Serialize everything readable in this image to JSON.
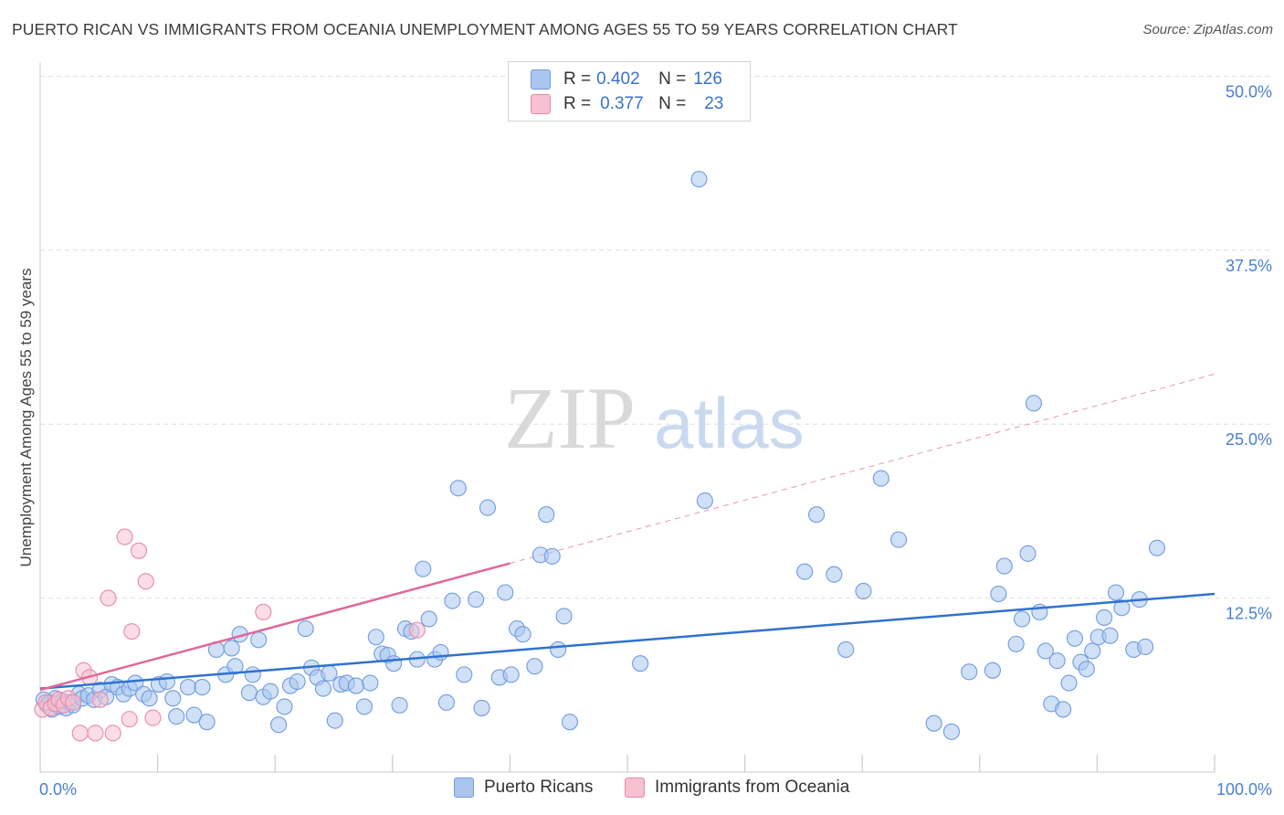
{
  "title": "PUERTO RICAN VS IMMIGRANTS FROM OCEANIA UNEMPLOYMENT AMONG AGES 55 TO 59 YEARS CORRELATION CHART",
  "source": "Source: ZipAtlas.com",
  "watermark": {
    "zip": "ZIP",
    "atlas": "atlas"
  },
  "colors": {
    "blue_fill": "#aac6ef",
    "blue_stroke": "#6f9be0",
    "blue_line": "#2f72d0",
    "pink_fill": "#f6c1d1",
    "pink_stroke": "#e889a8",
    "pink_line": "#e0689a",
    "grid": "#dddddd",
    "tick_text": "#4a7fd1"
  },
  "stats_legend": [
    {
      "r_label": "R = ",
      "r_value": "0.402",
      "n_label": "N = ",
      "n_value": "126"
    },
    {
      "r_label": "R = ",
      "r_value": "0.377",
      "n_label": "N = ",
      "n_value": "23"
    }
  ],
  "chart_data": {
    "type": "scatter",
    "title": "PUERTO RICAN VS IMMIGRANTS FROM OCEANIA UNEMPLOYMENT AMONG AGES 55 TO 59 YEARS CORRELATION CHART",
    "xlabel": "",
    "ylabel": "Unemployment Among Ages 55 to 59 years",
    "xlim": [
      0,
      100
    ],
    "ylim": [
      0,
      52.5
    ],
    "x_tick_labels": [
      "0.0%",
      "100.0%"
    ],
    "y_ticks": [
      12.5,
      25.0,
      37.5,
      50.0
    ],
    "y_tick_labels": [
      "12.5%",
      "25.0%",
      "37.5%",
      "50.0%"
    ],
    "series": [
      {
        "name": "Puerto Ricans",
        "r": 0.402,
        "n": 126,
        "trend": {
          "x": [
            0,
            100
          ],
          "y": [
            6.0,
            12.8
          ]
        },
        "points": [
          [
            0.3,
            5.2
          ],
          [
            0.6,
            4.8
          ],
          [
            0.8,
            5.0
          ],
          [
            1.0,
            4.5
          ],
          [
            1.3,
            5.3
          ],
          [
            1.6,
            4.7
          ],
          [
            1.9,
            5.1
          ],
          [
            2.2,
            4.6
          ],
          [
            2.5,
            5.0
          ],
          [
            2.8,
            4.8
          ],
          [
            3.3,
            5.6
          ],
          [
            3.6,
            5.3
          ],
          [
            4.1,
            5.5
          ],
          [
            4.6,
            5.2
          ],
          [
            5.1,
            5.9
          ],
          [
            5.6,
            5.4
          ],
          [
            6.1,
            6.3
          ],
          [
            6.6,
            6.1
          ],
          [
            7.1,
            5.6
          ],
          [
            7.6,
            6.0
          ],
          [
            8.1,
            6.4
          ],
          [
            8.8,
            5.6
          ],
          [
            9.3,
            5.3
          ],
          [
            10.1,
            6.3
          ],
          [
            10.8,
            6.5
          ],
          [
            11.3,
            5.3
          ],
          [
            11.6,
            4.0
          ],
          [
            12.6,
            6.1
          ],
          [
            13.1,
            4.1
          ],
          [
            13.8,
            6.1
          ],
          [
            14.2,
            3.6
          ],
          [
            15.0,
            8.8
          ],
          [
            15.8,
            7.0
          ],
          [
            16.3,
            8.9
          ],
          [
            16.6,
            7.6
          ],
          [
            17.0,
            9.9
          ],
          [
            17.8,
            5.7
          ],
          [
            18.1,
            7.0
          ],
          [
            18.6,
            9.5
          ],
          [
            19.0,
            5.4
          ],
          [
            19.6,
            5.8
          ],
          [
            20.3,
            3.4
          ],
          [
            20.8,
            4.7
          ],
          [
            21.3,
            6.2
          ],
          [
            21.9,
            6.5
          ],
          [
            22.6,
            10.3
          ],
          [
            23.1,
            7.5
          ],
          [
            23.6,
            6.8
          ],
          [
            24.1,
            6.0
          ],
          [
            24.6,
            7.1
          ],
          [
            25.1,
            3.7
          ],
          [
            25.6,
            6.3
          ],
          [
            26.1,
            6.4
          ],
          [
            26.9,
            6.2
          ],
          [
            27.6,
            4.7
          ],
          [
            28.1,
            6.4
          ],
          [
            28.6,
            9.7
          ],
          [
            29.1,
            8.5
          ],
          [
            29.6,
            8.4
          ],
          [
            30.1,
            7.8
          ],
          [
            30.6,
            4.8
          ],
          [
            31.1,
            10.3
          ],
          [
            31.6,
            10.1
          ],
          [
            32.1,
            8.1
          ],
          [
            32.6,
            14.6
          ],
          [
            33.1,
            11.0
          ],
          [
            33.6,
            8.1
          ],
          [
            34.1,
            8.6
          ],
          [
            34.6,
            5.0
          ],
          [
            35.1,
            12.3
          ],
          [
            35.6,
            20.4
          ],
          [
            36.1,
            7.0
          ],
          [
            37.1,
            12.4
          ],
          [
            37.6,
            4.6
          ],
          [
            38.1,
            19.0
          ],
          [
            39.1,
            6.8
          ],
          [
            39.6,
            12.9
          ],
          [
            40.1,
            7.0
          ],
          [
            40.6,
            10.3
          ],
          [
            41.1,
            9.9
          ],
          [
            42.1,
            7.6
          ],
          [
            42.6,
            15.6
          ],
          [
            43.1,
            18.5
          ],
          [
            43.6,
            15.5
          ],
          [
            44.1,
            8.8
          ],
          [
            44.6,
            11.2
          ],
          [
            45.1,
            3.6
          ],
          [
            51.1,
            7.8
          ],
          [
            56.1,
            42.6
          ],
          [
            56.6,
            19.5
          ],
          [
            65.1,
            14.4
          ],
          [
            66.1,
            18.5
          ],
          [
            67.6,
            14.2
          ],
          [
            68.6,
            8.8
          ],
          [
            70.1,
            13.0
          ],
          [
            71.6,
            21.1
          ],
          [
            73.1,
            16.7
          ],
          [
            76.1,
            3.5
          ],
          [
            77.6,
            2.9
          ],
          [
            79.1,
            7.2
          ],
          [
            81.1,
            7.3
          ],
          [
            81.6,
            12.8
          ],
          [
            82.1,
            14.8
          ],
          [
            83.1,
            9.2
          ],
          [
            83.6,
            11.0
          ],
          [
            84.1,
            15.7
          ],
          [
            84.6,
            26.5
          ],
          [
            85.1,
            11.5
          ],
          [
            85.6,
            8.7
          ],
          [
            86.1,
            4.9
          ],
          [
            86.6,
            8.0
          ],
          [
            87.1,
            4.5
          ],
          [
            87.6,
            6.4
          ],
          [
            88.1,
            9.6
          ],
          [
            88.6,
            7.9
          ],
          [
            89.1,
            7.4
          ],
          [
            89.6,
            8.7
          ],
          [
            90.1,
            9.7
          ],
          [
            90.6,
            11.1
          ],
          [
            91.1,
            9.8
          ],
          [
            91.6,
            12.9
          ],
          [
            92.1,
            11.8
          ],
          [
            93.1,
            8.8
          ],
          [
            93.6,
            12.4
          ],
          [
            94.1,
            9.0
          ],
          [
            95.1,
            16.1
          ]
        ]
      },
      {
        "name": "Immigrants from Oceania",
        "r": 0.377,
        "n": 23,
        "trend": {
          "x": [
            0,
            40
          ],
          "y": [
            5.9,
            15.0
          ]
        },
        "trend_extension": {
          "x": [
            40,
            100
          ],
          "y": [
            15.0,
            28.6
          ]
        },
        "points": [
          [
            0.2,
            4.5
          ],
          [
            0.5,
            5.0
          ],
          [
            0.9,
            4.6
          ],
          [
            1.3,
            4.9
          ],
          [
            1.6,
            5.2
          ],
          [
            2.0,
            4.8
          ],
          [
            2.4,
            5.3
          ],
          [
            2.8,
            5.0
          ],
          [
            3.4,
            2.8
          ],
          [
            3.7,
            7.3
          ],
          [
            4.2,
            6.8
          ],
          [
            4.7,
            2.8
          ],
          [
            5.1,
            5.2
          ],
          [
            5.8,
            12.5
          ],
          [
            6.2,
            2.8
          ],
          [
            7.2,
            16.9
          ],
          [
            7.6,
            3.8
          ],
          [
            7.8,
            10.1
          ],
          [
            8.4,
            15.9
          ],
          [
            9.0,
            13.7
          ],
          [
            9.6,
            3.9
          ],
          [
            19.0,
            11.5
          ],
          [
            32.1,
            10.2
          ]
        ]
      }
    ]
  },
  "bottom_legend": [
    "Puerto Ricans",
    "Immigrants from Oceania"
  ]
}
